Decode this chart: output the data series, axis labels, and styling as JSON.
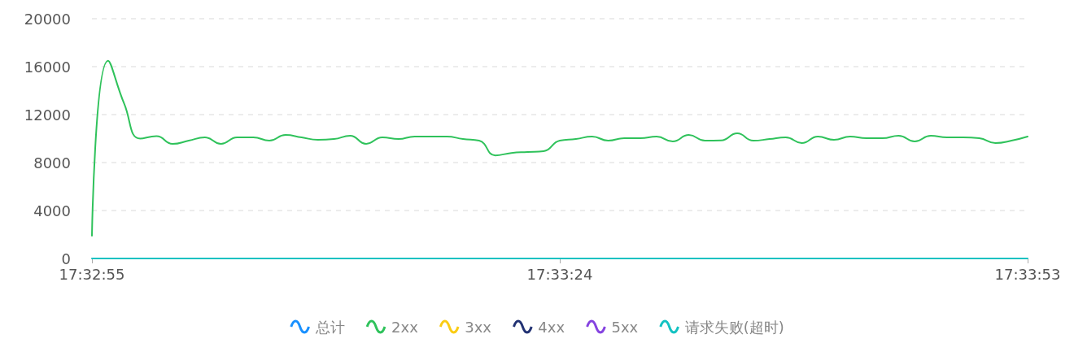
{
  "chart_data": {
    "type": "line",
    "categories": [
      "17:32:55",
      null,
      null,
      null,
      null,
      null,
      null,
      null,
      null,
      null,
      null,
      null,
      null,
      null,
      null,
      null,
      null,
      null,
      null,
      null,
      null,
      null,
      null,
      null,
      null,
      null,
      null,
      null,
      null,
      "17:33:24",
      null,
      null,
      null,
      null,
      null,
      null,
      null,
      null,
      null,
      null,
      null,
      null,
      null,
      null,
      null,
      null,
      null,
      null,
      null,
      null,
      null,
      null,
      null,
      null,
      null,
      null,
      null,
      null,
      "17:33:53"
    ],
    "series": [
      {
        "name": "总计",
        "color": "#1890ff",
        "values": [
          null,
          null,
          null,
          null,
          null,
          null,
          null,
          null,
          null,
          null,
          null,
          null,
          null,
          null,
          null,
          null,
          null,
          null,
          null,
          null,
          null,
          null,
          null,
          null,
          null,
          null,
          null,
          null,
          null,
          null,
          null,
          null,
          null,
          null,
          null,
          null,
          null,
          null,
          null,
          null,
          null,
          null,
          null,
          null,
          null,
          null,
          null,
          null,
          null,
          null,
          null,
          null,
          null,
          null,
          null,
          null,
          null,
          null,
          null
        ]
      },
      {
        "name": "2xx",
        "color": "#2fc25b",
        "values": [
          1900,
          16500,
          12900,
          10000,
          10200,
          9560,
          9830,
          10100,
          9560,
          10100,
          10100,
          9830,
          10300,
          10100,
          9900,
          9960,
          10240,
          9560,
          10100,
          9960,
          10170,
          10170,
          10170,
          9960,
          9830,
          8600,
          8800,
          8880,
          8950,
          9830,
          9960,
          10170,
          9830,
          10030,
          10030,
          10170,
          9760,
          10300,
          9830,
          9850,
          10440,
          9830,
          9960,
          10100,
          9630,
          10170,
          9900,
          10170,
          10030,
          10030,
          10240,
          9760,
          10240,
          10100,
          10100,
          10030,
          9630,
          9830,
          10170
        ]
      },
      {
        "name": "3xx",
        "color": "#facc14",
        "values": [
          null,
          null,
          null,
          null,
          null,
          null,
          null,
          null,
          null,
          null,
          null,
          null,
          null,
          null,
          null,
          null,
          null,
          null,
          null,
          null,
          null,
          null,
          null,
          null,
          null,
          null,
          null,
          null,
          null,
          null,
          null,
          null,
          null,
          null,
          null,
          null,
          null,
          null,
          null,
          null,
          null,
          null,
          null,
          null,
          null,
          null,
          null,
          null,
          null,
          null,
          null,
          null,
          null,
          null,
          null,
          null,
          null,
          null,
          null
        ]
      },
      {
        "name": "4xx",
        "color": "#223273",
        "values": [
          null,
          null,
          null,
          null,
          null,
          null,
          null,
          null,
          null,
          null,
          null,
          null,
          null,
          null,
          null,
          null,
          null,
          null,
          null,
          null,
          null,
          null,
          null,
          null,
          null,
          null,
          null,
          null,
          null,
          null,
          null,
          null,
          null,
          null,
          null,
          null,
          null,
          null,
          null,
          null,
          null,
          null,
          null,
          null,
          null,
          null,
          null,
          null,
          null,
          null,
          null,
          null,
          null,
          null,
          null,
          null,
          null,
          null,
          null
        ]
      },
      {
        "name": "5xx",
        "color": "#8543e0",
        "values": [
          null,
          null,
          null,
          null,
          null,
          null,
          null,
          null,
          null,
          null,
          null,
          null,
          null,
          null,
          null,
          null,
          null,
          null,
          null,
          null,
          null,
          null,
          null,
          null,
          null,
          null,
          null,
          null,
          null,
          null,
          null,
          null,
          null,
          null,
          null,
          null,
          null,
          null,
          null,
          null,
          null,
          null,
          null,
          null,
          null,
          null,
          null,
          null,
          null,
          null,
          null,
          null,
          null,
          null,
          null,
          null,
          null,
          null,
          null
        ]
      },
      {
        "name": "请求失败(超时)",
        "color": "#13c2c2",
        "values": [
          0,
          0,
          0,
          0,
          0,
          0,
          0,
          0,
          0,
          0,
          0,
          0,
          0,
          0,
          0,
          0,
          0,
          0,
          0,
          0,
          0,
          0,
          0,
          0,
          0,
          0,
          0,
          0,
          0,
          0,
          0,
          0,
          0,
          0,
          0,
          0,
          0,
          0,
          0,
          0,
          0,
          0,
          0,
          0,
          0,
          0,
          0,
          0,
          0,
          0,
          0,
          0,
          0,
          0,
          0,
          0,
          0,
          0,
          0
        ]
      }
    ],
    "ylim": [
      0,
      20000
    ],
    "yticks": [
      0,
      4000,
      8000,
      12000,
      16000,
      20000
    ],
    "grid": "y",
    "legend": "bottom",
    "marker": "none",
    "line_style": "solid"
  }
}
